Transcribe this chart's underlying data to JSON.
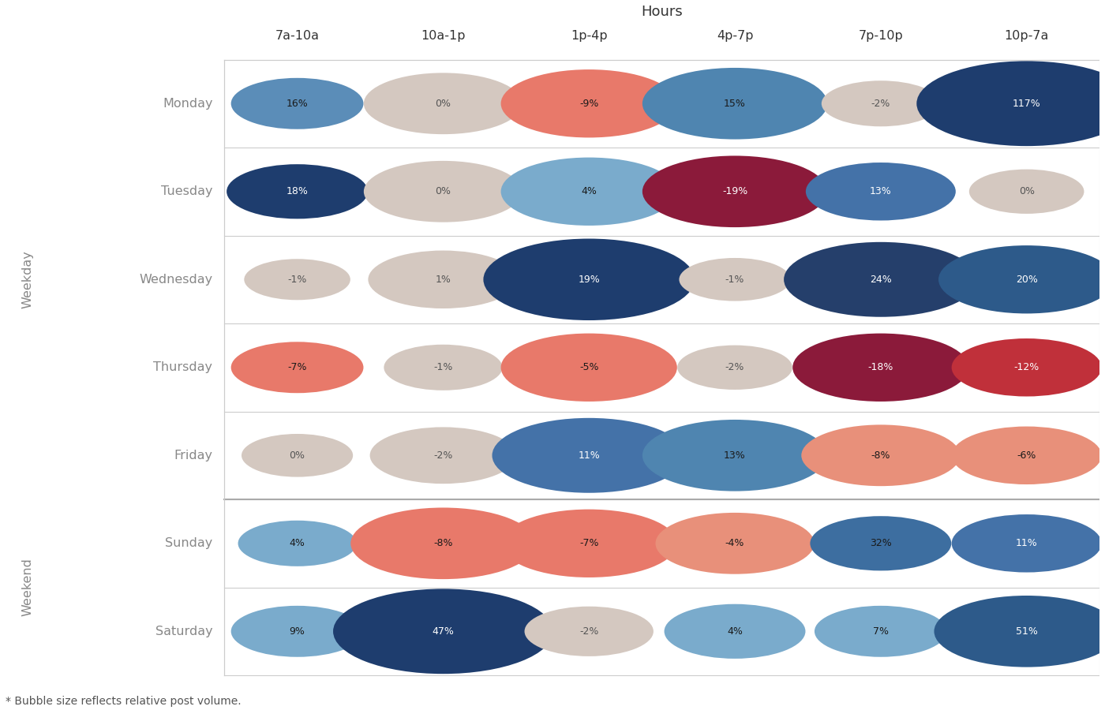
{
  "title": "Hours",
  "footnote": "* Bubble size reflects relative post volume.",
  "columns": [
    "7a-10a",
    "10a-1p",
    "1p-4p",
    "4p-7p",
    "7p-10p",
    "10p-7a"
  ],
  "rows": [
    "Monday",
    "Tuesday",
    "Wednesday",
    "Thursday",
    "Friday",
    "Sunday",
    "Saturday"
  ],
  "values": [
    [
      16,
      0,
      -9,
      15,
      -2,
      117
    ],
    [
      18,
      0,
      4,
      -19,
      13,
      0
    ],
    [
      -1,
      1,
      19,
      -1,
      24,
      20
    ],
    [
      -7,
      -1,
      -5,
      -2,
      -18,
      -12
    ],
    [
      0,
      -2,
      11,
      13,
      -8,
      -6
    ],
    [
      4,
      -8,
      -7,
      -4,
      32,
      11
    ],
    [
      9,
      47,
      -2,
      4,
      7,
      51
    ]
  ],
  "sizes": [
    [
      30,
      45,
      55,
      60,
      22,
      80
    ],
    [
      35,
      45,
      55,
      60,
      40,
      20
    ],
    [
      15,
      40,
      75,
      18,
      65,
      55
    ],
    [
      30,
      22,
      55,
      20,
      55,
      40
    ],
    [
      18,
      38,
      65,
      60,
      45,
      40
    ],
    [
      22,
      60,
      55,
      45,
      35,
      40
    ],
    [
      30,
      80,
      28,
      35,
      30,
      60
    ]
  ],
  "bubble_colors": [
    [
      "#5b8db8",
      "#d4c8c0",
      "#e8796a",
      "#4f85b0",
      "#d4c8c0",
      "#1e3d6e"
    ],
    [
      "#1e3d6e",
      "#d4c8c0",
      "#7aabcc",
      "#8b1a3a",
      "#4472a8",
      "#d4c8c0"
    ],
    [
      "#d4c8c0",
      "#d4c8c0",
      "#1e3d6e",
      "#d4c8c0",
      "#253f6b",
      "#2d5a8a"
    ],
    [
      "#e8796a",
      "#d4c8c0",
      "#e8796a",
      "#d4c8c0",
      "#8b1a3a",
      "#c0303a"
    ],
    [
      "#d4c8c0",
      "#d4c8c0",
      "#4472a8",
      "#4f85b0",
      "#e8907a",
      "#e8907a"
    ],
    [
      "#7aabcc",
      "#e8796a",
      "#e8796a",
      "#e8907a",
      "#3d6ea0",
      "#4472a8"
    ],
    [
      "#7aabcc",
      "#1e3d6e",
      "#d4c8c0",
      "#7aabcc",
      "#7aabcc",
      "#2d5a8a"
    ]
  ],
  "text_colors": [
    [
      "#1a1a1a",
      "#555555",
      "#1a1a1a",
      "#1a1a1a",
      "#555555",
      "#ffffff"
    ],
    [
      "#ffffff",
      "#555555",
      "#1a1a1a",
      "#ffffff",
      "#ffffff",
      "#555555"
    ],
    [
      "#555555",
      "#555555",
      "#ffffff",
      "#555555",
      "#ffffff",
      "#ffffff"
    ],
    [
      "#1a1a1a",
      "#555555",
      "#1a1a1a",
      "#555555",
      "#ffffff",
      "#ffffff"
    ],
    [
      "#555555",
      "#555555",
      "#ffffff",
      "#1a1a1a",
      "#1a1a1a",
      "#1a1a1a"
    ],
    [
      "#1a1a1a",
      "#1a1a1a",
      "#1a1a1a",
      "#1a1a1a",
      "#1a1a1a",
      "#ffffff"
    ],
    [
      "#1a1a1a",
      "#ffffff",
      "#555555",
      "#1a1a1a",
      "#1a1a1a",
      "#ffffff"
    ]
  ],
  "background_color": "#ffffff",
  "grid_color": "#cccccc",
  "separator_color": "#aaaaaa"
}
